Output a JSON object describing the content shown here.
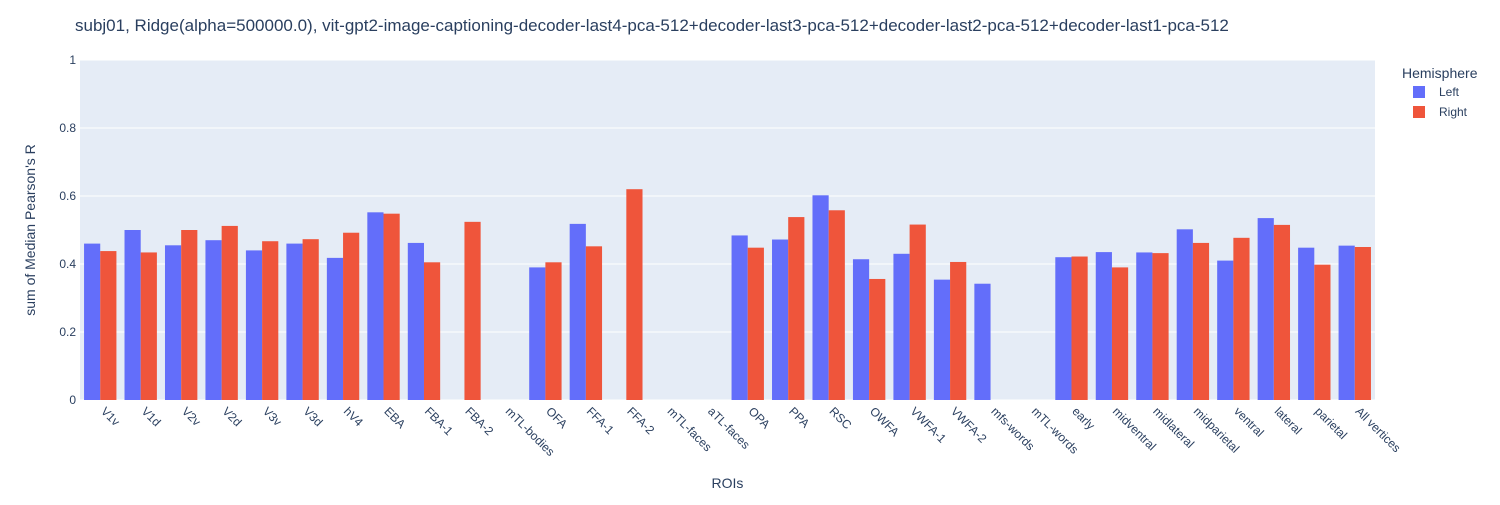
{
  "chart_data": {
    "type": "bar",
    "title": "subj01, Ridge(alpha=500000.0), vit-gpt2-image-captioning-decoder-last4-pca-512+decoder-last3-pca-512+decoder-last2-pca-512+decoder-last1-pca-512",
    "xlabel": "ROIs",
    "ylabel": "sum of Median Pearson's R",
    "ylim": [
      0,
      1
    ],
    "yticks": [
      0,
      0.2,
      0.4,
      0.6,
      0.8,
      1
    ],
    "ytick_labels": [
      "0",
      "0.2",
      "0.4",
      "0.6",
      "0.8",
      "1"
    ],
    "grid": true,
    "legend": {
      "title": "Hemisphere",
      "placement": "top-right"
    },
    "categories": [
      "V1v",
      "V1d",
      "V2v",
      "V2d",
      "V3v",
      "V3d",
      "hV4",
      "EBA",
      "FBA-1",
      "FBA-2",
      "mTL-bodies",
      "OFA",
      "FFA-1",
      "FFA-2",
      "mTL-faces",
      "aTL-faces",
      "OPA",
      "PPA",
      "RSC",
      "OWFA",
      "VWFA-1",
      "VWFA-2",
      "mfs-words",
      "mTL-words",
      "early",
      "midventral",
      "midlateral",
      "midparietal",
      "ventral",
      "lateral",
      "parietal",
      "All vertices"
    ],
    "series": [
      {
        "name": "Left",
        "color": "#636efa",
        "values": [
          0.46,
          0.5,
          0.455,
          0.47,
          0.44,
          0.46,
          0.418,
          0.552,
          0.462,
          null,
          null,
          0.39,
          0.518,
          null,
          null,
          null,
          0.484,
          0.472,
          0.602,
          0.414,
          0.43,
          0.354,
          0.342,
          null,
          0.42,
          0.435,
          0.434,
          0.502,
          0.41,
          0.535,
          0.448,
          0.454
        ]
      },
      {
        "name": "Right",
        "color": "#ef553b",
        "values": [
          0.438,
          0.434,
          0.5,
          0.512,
          0.467,
          0.473,
          0.492,
          0.548,
          0.405,
          0.524,
          null,
          0.405,
          0.452,
          0.62,
          null,
          null,
          0.448,
          0.538,
          0.558,
          0.356,
          0.516,
          0.406,
          null,
          null,
          0.422,
          0.39,
          0.432,
          0.462,
          0.477,
          0.515,
          0.398,
          0.45
        ]
      }
    ]
  },
  "colors": {
    "plot_bg": "#e5ecf6",
    "grid": "#ffffff",
    "text": "#2a3f5f"
  }
}
